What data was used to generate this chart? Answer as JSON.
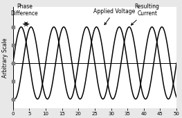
{
  "ylabel": "Arbitrary Scale",
  "xlim": [
    0,
    50
  ],
  "ylim": [
    -1.25,
    1.55
  ],
  "xticks": [
    0,
    5,
    10,
    15,
    20,
    25,
    30,
    35,
    40,
    45,
    50
  ],
  "background_color": "#e8e8e8",
  "plot_bg_color": "#ffffff",
  "line_color": "#000000",
  "voltage_amplitude": 1.0,
  "current_amplitude": 1.0,
  "freq": 0.6283185307,
  "phase_shift": 1.9,
  "annotation_phase_diff": "Phase\nDifference",
  "annotation_voltage": "Applied Voltage",
  "annotation_current": "Resulting\nCurrent",
  "font_size": 5.5,
  "line_width": 1.1,
  "ytick_positions": [
    -1.0,
    -0.5,
    0.0,
    0.5,
    1.0
  ]
}
